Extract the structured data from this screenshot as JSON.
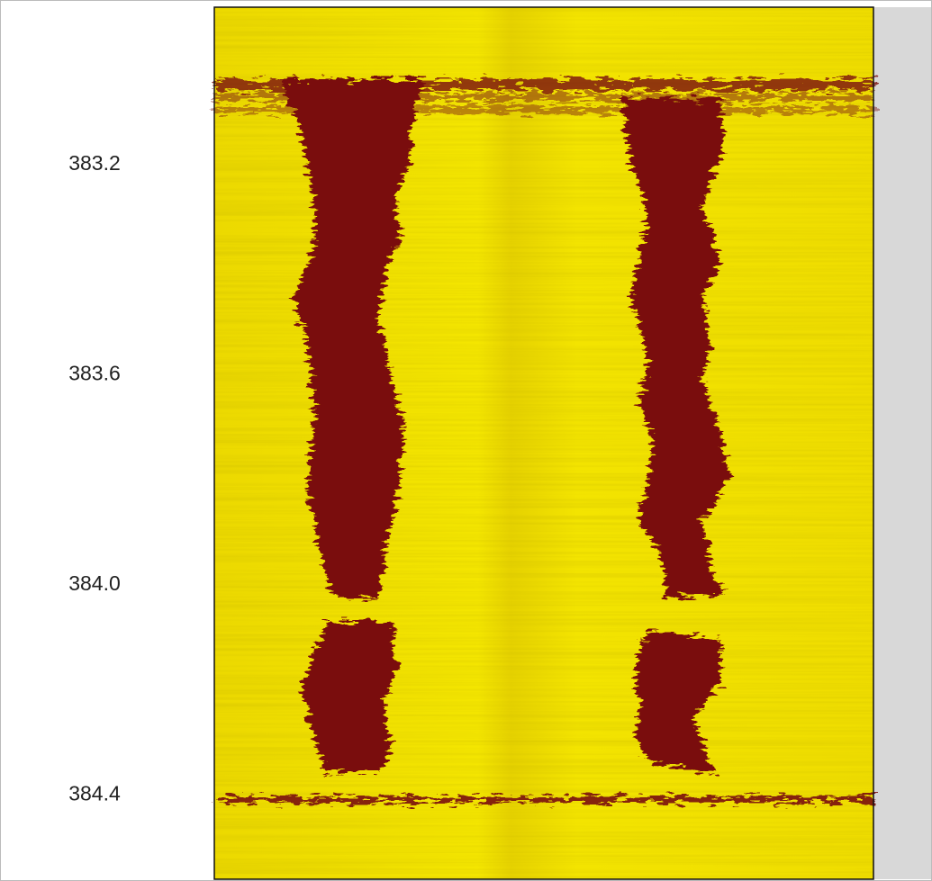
{
  "chart_data": {
    "type": "image",
    "ylim": [
      382.9,
      384.56
    ],
    "y_inverted": true,
    "yticks": [
      383.2,
      383.6,
      {
        "value": 384.0,
        "label": "384.0"
      },
      384.4
    ]
  }
}
